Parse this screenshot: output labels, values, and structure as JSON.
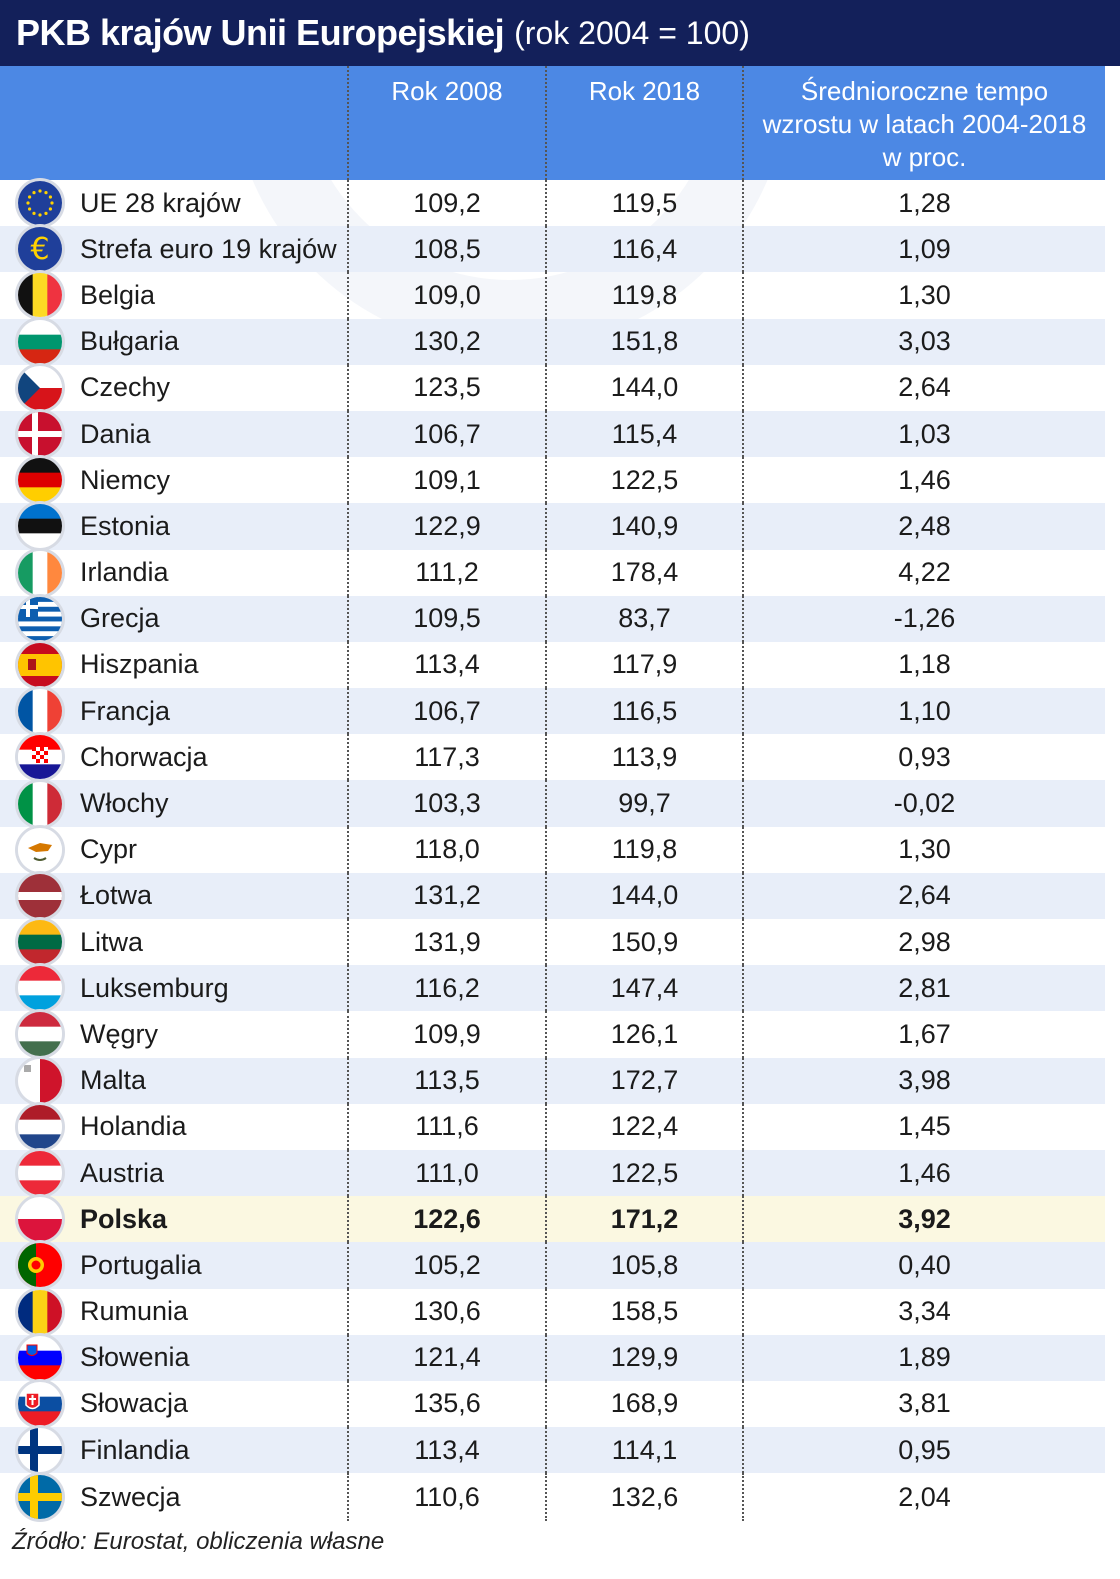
{
  "title": "PKB krajów Unii Europejskiej",
  "subtitle": "(rok 2004 = 100)",
  "chart_data": {
    "type": "table",
    "title": "PKB krajów Unii Europejskiej (rok 2004 = 100)",
    "columns": [
      "",
      "Rok 2008",
      "Rok 2018",
      "Średnioroczne tempo wzrostu w latach 2004-2018 w proc."
    ],
    "rows": [
      {
        "country": "UE 28 krajów",
        "flag": "eu-flag-icon",
        "y2008": "109,2",
        "y2018": "119,5",
        "growth": "1,28"
      },
      {
        "country": "Strefa euro 19 krajów",
        "flag": "euro-sign-icon",
        "y2008": "108,5",
        "y2018": "116,4",
        "growth": "1,09"
      },
      {
        "country": "Belgia",
        "flag": "belgium-flag-icon",
        "y2008": "109,0",
        "y2018": "119,8",
        "growth": "1,30"
      },
      {
        "country": "Bułgaria",
        "flag": "bulgaria-flag-icon",
        "y2008": "130,2",
        "y2018": "151,8",
        "growth": "3,03"
      },
      {
        "country": "Czechy",
        "flag": "czechia-flag-icon",
        "y2008": "123,5",
        "y2018": "144,0",
        "growth": "2,64"
      },
      {
        "country": "Dania",
        "flag": "denmark-flag-icon",
        "y2008": "106,7",
        "y2018": "115,4",
        "growth": "1,03"
      },
      {
        "country": "Niemcy",
        "flag": "germany-flag-icon",
        "y2008": "109,1",
        "y2018": "122,5",
        "growth": "1,46"
      },
      {
        "country": "Estonia",
        "flag": "estonia-flag-icon",
        "y2008": "122,9",
        "y2018": "140,9",
        "growth": "2,48"
      },
      {
        "country": "Irlandia",
        "flag": "ireland-flag-icon",
        "y2008": "111,2",
        "y2018": "178,4",
        "growth": "4,22"
      },
      {
        "country": "Grecja",
        "flag": "greece-flag-icon",
        "y2008": "109,5",
        "y2018": "83,7",
        "growth": "-1,26"
      },
      {
        "country": "Hiszpania",
        "flag": "spain-flag-icon",
        "y2008": "113,4",
        "y2018": "117,9",
        "growth": "1,18"
      },
      {
        "country": "Francja",
        "flag": "france-flag-icon",
        "y2008": "106,7",
        "y2018": "116,5",
        "growth": "1,10"
      },
      {
        "country": "Chorwacja",
        "flag": "croatia-flag-icon",
        "y2008": "117,3",
        "y2018": "113,9",
        "growth": "0,93"
      },
      {
        "country": "Włochy",
        "flag": "italy-flag-icon",
        "y2008": "103,3",
        "y2018": "99,7",
        "growth": "-0,02"
      },
      {
        "country": "Cypr",
        "flag": "cyprus-flag-icon",
        "y2008": "118,0",
        "y2018": "119,8",
        "growth": "1,30"
      },
      {
        "country": "Łotwa",
        "flag": "latvia-flag-icon",
        "y2008": "131,2",
        "y2018": "144,0",
        "growth": "2,64"
      },
      {
        "country": "Litwa",
        "flag": "lithuania-flag-icon",
        "y2008": "131,9",
        "y2018": "150,9",
        "growth": "2,98"
      },
      {
        "country": "Luksemburg",
        "flag": "luxembourg-flag-icon",
        "y2008": "116,2",
        "y2018": "147,4",
        "growth": "2,81"
      },
      {
        "country": "Węgry",
        "flag": "hungary-flag-icon",
        "y2008": "109,9",
        "y2018": "126,1",
        "growth": "1,67"
      },
      {
        "country": "Malta",
        "flag": "malta-flag-icon",
        "y2008": "113,5",
        "y2018": "172,7",
        "growth": "3,98"
      },
      {
        "country": "Holandia",
        "flag": "netherlands-flag-icon",
        "y2008": "111,6",
        "y2018": "122,4",
        "growth": "1,45"
      },
      {
        "country": "Austria",
        "flag": "austria-flag-icon",
        "y2008": "111,0",
        "y2018": "122,5",
        "growth": "1,46"
      },
      {
        "country": "Polska",
        "flag": "poland-flag-icon",
        "y2008": "122,6",
        "y2018": "171,2",
        "growth": "3,92",
        "highlight": true
      },
      {
        "country": "Portugalia",
        "flag": "portugal-flag-icon",
        "y2008": "105,2",
        "y2018": "105,8",
        "growth": "0,40"
      },
      {
        "country": "Rumunia",
        "flag": "romania-flag-icon",
        "y2008": "130,6",
        "y2018": "158,5",
        "growth": "3,34"
      },
      {
        "country": "Słowenia",
        "flag": "slovenia-flag-icon",
        "y2008": "121,4",
        "y2018": "129,9",
        "growth": "1,89"
      },
      {
        "country": "Słowacja",
        "flag": "slovakia-flag-icon",
        "y2008": "135,6",
        "y2018": "168,9",
        "growth": "3,81"
      },
      {
        "country": "Finlandia",
        "flag": "finland-flag-icon",
        "y2008": "113,4",
        "y2018": "114,1",
        "growth": "0,95"
      },
      {
        "country": "Szwecja",
        "flag": "sweden-flag-icon",
        "y2008": "110,6",
        "y2018": "132,6",
        "growth": "2,04"
      }
    ]
  },
  "header": {
    "col2008": "Rok 2008",
    "col2018": "Rok 2018",
    "growth_line1": "Średnioroczne tempo",
    "growth_line2": "wzrostu w latach 2004-2018",
    "growth_line3": "w proc."
  },
  "source": "Źródło: Eurostat, obliczenia własne",
  "colors": {
    "title_bg": "#13205a",
    "header_bg": "#4c88e4",
    "alt_row": "#e8eef9",
    "highlight_row": "#fbf8e1"
  }
}
